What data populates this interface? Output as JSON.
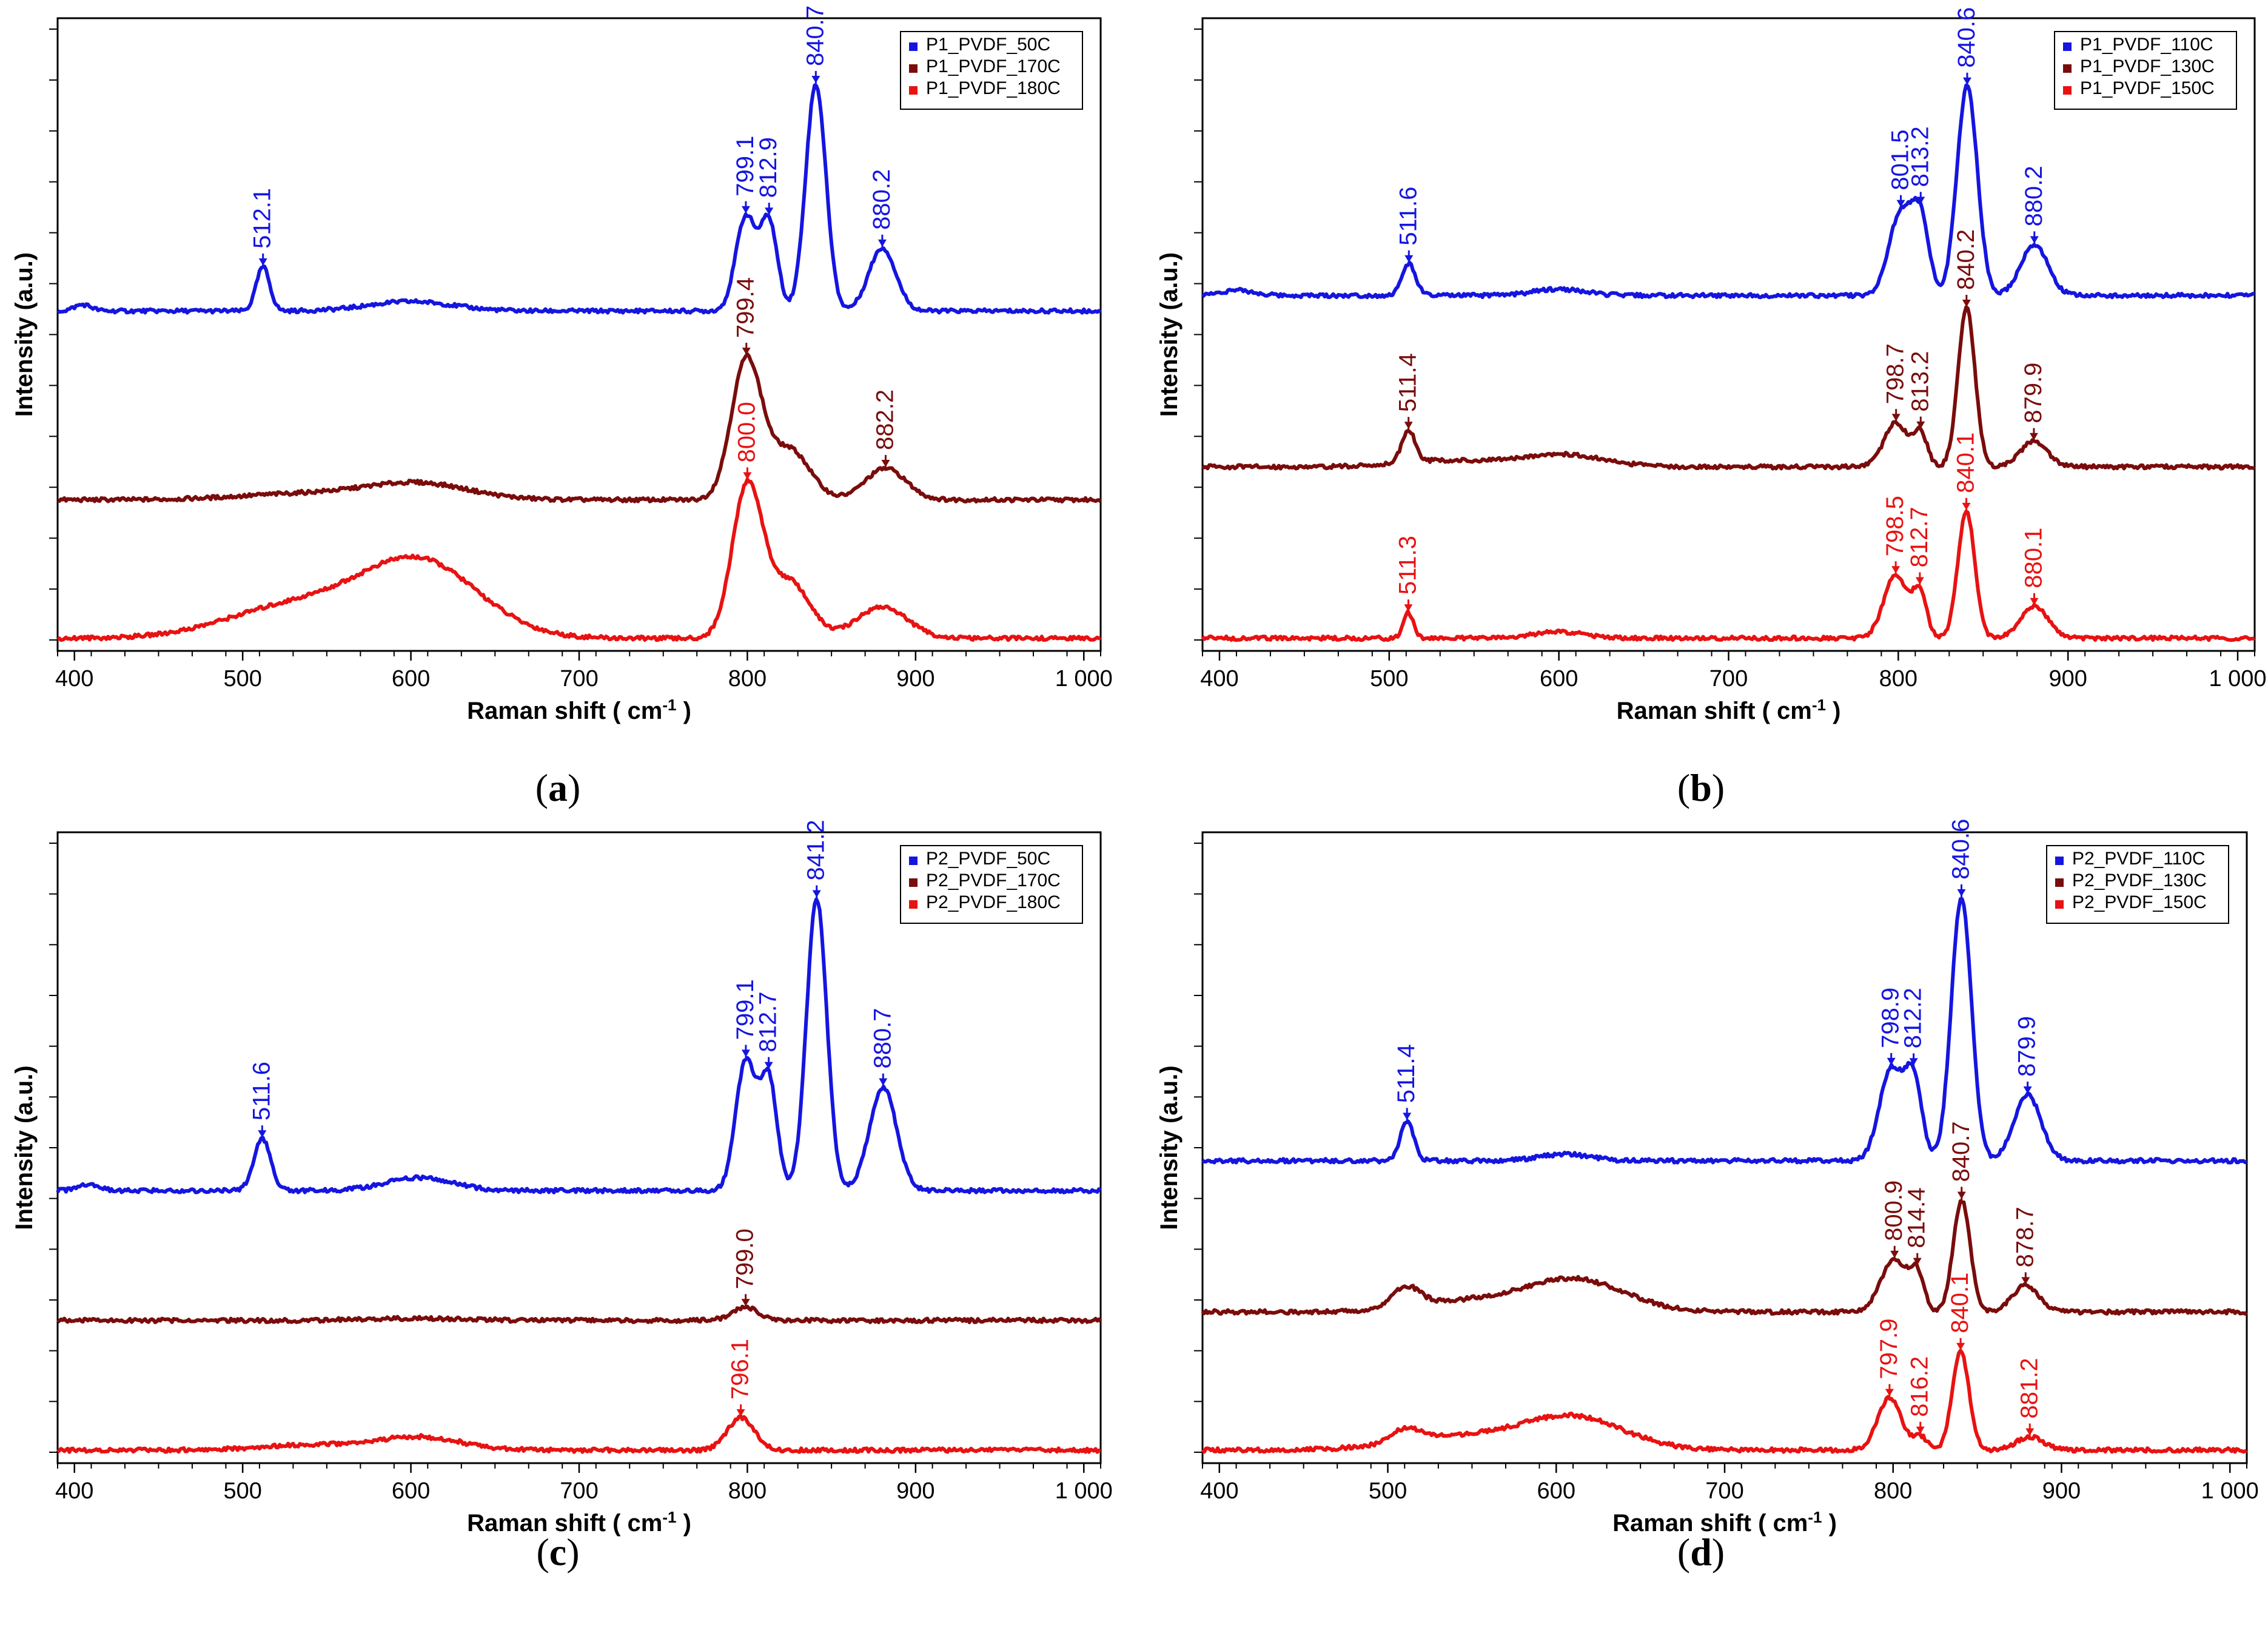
{
  "figure": {
    "x_axis_label_prefix": "Raman shift ( cm",
    "x_axis_label_exp": "-1",
    "x_axis_label_suffix": " )",
    "y_axis_label": "Intensity (a.u.)",
    "colors": {
      "series1": "#1515e0",
      "series2": "#7a0c0c",
      "series3": "#e81212"
    }
  },
  "chart_data": [
    {
      "type": "line",
      "panel": "a",
      "caption": "(a)",
      "xlim": [
        390,
        1010
      ],
      "xticks": [
        400,
        500,
        600,
        700,
        800,
        900,
        1000
      ],
      "xtick_labels": [
        "400",
        "500",
        "600",
        "700",
        "800",
        "900",
        "1 000"
      ],
      "xlabel": "Raman shift ( cm-1 )",
      "ylabel": "Intensity (a.u.)",
      "legend": [
        "P1_PVDF_50C",
        "P1_PVDF_170C",
        "P1_PVDF_180C"
      ],
      "series": [
        {
          "name": "P1_PVDF_50C",
          "color": "#1515e0",
          "baseline": 5.3,
          "peaks": [
            [
              512.1,
              0.7,
              4
            ],
            [
              799.1,
              1.5,
              6
            ],
            [
              812.9,
              1.4,
              5
            ],
            [
              840.7,
              3.6,
              6
            ],
            [
              880.2,
              1.0,
              8
            ],
            [
              600,
              0.15,
              25
            ],
            [
              405,
              0.1,
              5
            ]
          ],
          "labels": [
            {
              "x": 512.1,
              "text": "512.1"
            },
            {
              "x": 799.1,
              "text": "799.1"
            },
            {
              "x": 812.9,
              "text": "812.9"
            },
            {
              "x": 840.7,
              "text": "840.7"
            },
            {
              "x": 880.2,
              "text": "880.2"
            }
          ]
        },
        {
          "name": "P1_PVDF_170C",
          "color": "#7a0c0c",
          "baseline": 2.3,
          "peaks": [
            [
              799.4,
              2.2,
              9
            ],
            [
              825,
              0.8,
              12
            ],
            [
              882.2,
              0.5,
              12
            ],
            [
              605,
              0.25,
              30
            ],
            [
              540,
              0.1,
              40
            ]
          ],
          "labels": [
            {
              "x": 799.4,
              "text": "799.4"
            },
            {
              "x": 882.2,
              "text": "882.2"
            }
          ]
        },
        {
          "name": "P1_PVDF_180C",
          "color": "#e81212",
          "baseline": 0.1,
          "peaks": [
            [
              800.0,
              2.4,
              9
            ],
            [
              825,
              0.9,
              12
            ],
            [
              880,
              0.5,
              15
            ],
            [
              605,
              1.2,
              35
            ],
            [
              530,
              0.5,
              40
            ]
          ],
          "labels": [
            {
              "x": 800.0,
              "text": "800.0"
            }
          ]
        }
      ]
    },
    {
      "type": "line",
      "panel": "b",
      "caption": "(b)",
      "xlim": [
        390,
        1010
      ],
      "xticks": [
        400,
        500,
        600,
        700,
        800,
        900,
        1000
      ],
      "xtick_labels": [
        "400",
        "500",
        "600",
        "700",
        "800",
        "900",
        "1 000"
      ],
      "xlabel": "Raman shift ( cm-1 )",
      "ylabel": "Intensity (a.u.)",
      "legend": [
        "P1_PVDF_110C",
        "P1_PVDF_130C",
        "P1_PVDF_150C"
      ],
      "series": [
        {
          "name": "P1_PVDF_110C",
          "color": "#1515e0",
          "baseline": 5.5,
          "peaks": [
            [
              511.6,
              0.5,
              4
            ],
            [
              801.5,
              1.3,
              7
            ],
            [
              813.2,
              1.1,
              5
            ],
            [
              840.6,
              3.3,
              6
            ],
            [
              880.2,
              0.8,
              8
            ],
            [
              600,
              0.1,
              15
            ],
            [
              410,
              0.08,
              10
            ]
          ],
          "labels": [
            {
              "x": 511.6,
              "text": "511.6"
            },
            {
              "x": 801.5,
              "text": "801.5"
            },
            {
              "x": 813.2,
              "text": "813.2"
            },
            {
              "x": 840.6,
              "text": "840.6"
            },
            {
              "x": 880.2,
              "text": "880.2"
            }
          ]
        },
        {
          "name": "P1_PVDF_130C",
          "color": "#7a0c0c",
          "baseline": 2.8,
          "peaks": [
            [
              511.4,
              0.5,
              4
            ],
            [
              798.7,
              0.7,
              7
            ],
            [
              813.2,
              0.5,
              4
            ],
            [
              840.2,
              2.5,
              5
            ],
            [
              879.9,
              0.4,
              8
            ],
            [
              600,
              0.2,
              25
            ],
            [
              530,
              0.1,
              25
            ]
          ],
          "labels": [
            {
              "x": 511.4,
              "text": "511.4"
            },
            {
              "x": 798.7,
              "text": "798.7"
            },
            {
              "x": 813.2,
              "text": "813.2"
            },
            {
              "x": 840.2,
              "text": "840.2"
            },
            {
              "x": 879.9,
              "text": "879.9"
            }
          ]
        },
        {
          "name": "P1_PVDF_150C",
          "color": "#e81212",
          "baseline": 0.1,
          "peaks": [
            [
              511.3,
              0.4,
              3
            ],
            [
              798.5,
              1.0,
              7
            ],
            [
              812.7,
              0.7,
              4
            ],
            [
              840.1,
              2.0,
              5
            ],
            [
              880.1,
              0.5,
              8
            ],
            [
              600,
              0.1,
              15
            ]
          ],
          "labels": [
            {
              "x": 511.3,
              "text": "511.3"
            },
            {
              "x": 798.5,
              "text": "798.5"
            },
            {
              "x": 812.7,
              "text": "812.7"
            },
            {
              "x": 840.1,
              "text": "840.1"
            },
            {
              "x": 880.1,
              "text": "880.1"
            }
          ]
        }
      ]
    },
    {
      "type": "line",
      "panel": "c",
      "caption": "(c)",
      "xlim": [
        390,
        1010
      ],
      "xticks": [
        400,
        500,
        600,
        700,
        800,
        900,
        1000
      ],
      "xtick_labels": [
        "400",
        "500",
        "600",
        "700",
        "800",
        "900",
        "1 000"
      ],
      "xlabel": "Raman shift ( cm-1 )",
      "ylabel": "Intensity (a.u.)",
      "legend": [
        "P2_PVDF_50C",
        "P2_PVDF_170C",
        "P2_PVDF_180C"
      ],
      "series": [
        {
          "name": "P2_PVDF_50C",
          "color": "#1515e0",
          "baseline": 4.1,
          "peaks": [
            [
              511.6,
              0.8,
              5
            ],
            [
              799.1,
              2.0,
              6
            ],
            [
              812.7,
              1.7,
              5
            ],
            [
              841.2,
              4.5,
              6
            ],
            [
              880.7,
              1.6,
              8
            ],
            [
              605,
              0.2,
              20
            ],
            [
              408,
              0.1,
              6
            ]
          ],
          "labels": [
            {
              "x": 511.6,
              "text": "511.6"
            },
            {
              "x": 799.1,
              "text": "799.1"
            },
            {
              "x": 812.7,
              "text": "812.7"
            },
            {
              "x": 841.2,
              "text": "841.2"
            },
            {
              "x": 880.7,
              "text": "880.7"
            }
          ]
        },
        {
          "name": "P2_PVDF_170C",
          "color": "#7a0c0c",
          "baseline": 2.1,
          "peaks": [
            [
              799.0,
              0.2,
              8
            ],
            [
              600,
              0.03,
              30
            ]
          ],
          "labels": [
            {
              "x": 799.0,
              "text": "799.0"
            }
          ]
        },
        {
          "name": "P2_PVDF_180C",
          "color": "#e81212",
          "baseline": 0.1,
          "peaks": [
            [
              796.1,
              0.5,
              8
            ],
            [
              605,
              0.2,
              25
            ],
            [
              540,
              0.08,
              30
            ]
          ],
          "labels": [
            {
              "x": 796.1,
              "text": "796.1"
            }
          ]
        }
      ]
    },
    {
      "type": "line",
      "panel": "d",
      "caption": "(d)",
      "xlim": [
        390,
        1010
      ],
      "xticks": [
        400,
        500,
        600,
        700,
        800,
        900,
        1000
      ],
      "xtick_labels": [
        "400",
        "500",
        "600",
        "700",
        "800",
        "900",
        "1 000"
      ],
      "xlabel": "Raman shift ( cm-1 )",
      "ylabel": "Intensity (a.u.)",
      "legend": [
        "P2_PVDF_110C",
        "P2_PVDF_130C",
        "P2_PVDF_150C"
      ],
      "series": [
        {
          "name": "P2_PVDF_110C",
          "color": "#1515e0",
          "baseline": 4.5,
          "peaks": [
            [
              511.4,
              0.6,
              4
            ],
            [
              798.9,
              1.4,
              7
            ],
            [
              812.2,
              1.2,
              5
            ],
            [
              840.6,
              4.0,
              6
            ],
            [
              879.9,
              1.0,
              8
            ],
            [
              605,
              0.1,
              15
            ]
          ],
          "labels": [
            {
              "x": 511.4,
              "text": "511.4"
            },
            {
              "x": 798.9,
              "text": "798.9"
            },
            {
              "x": 812.2,
              "text": "812.2"
            },
            {
              "x": 840.6,
              "text": "840.6"
            },
            {
              "x": 879.9,
              "text": "879.9"
            }
          ]
        },
        {
          "name": "P2_PVDF_130C",
          "color": "#7a0c0c",
          "baseline": 2.2,
          "peaks": [
            [
              511,
              0.3,
              8
            ],
            [
              800.9,
              0.8,
              8
            ],
            [
              814.4,
              0.5,
              4
            ],
            [
              840.7,
              1.7,
              5
            ],
            [
              878.7,
              0.4,
              8
            ],
            [
              610,
              0.5,
              30
            ],
            [
              540,
              0.15,
              30
            ]
          ],
          "labels": [
            {
              "x": 800.9,
              "text": "800.9"
            },
            {
              "x": 814.4,
              "text": "814.4"
            },
            {
              "x": 840.7,
              "text": "840.7"
            },
            {
              "x": 878.7,
              "text": "878.7"
            }
          ]
        },
        {
          "name": "P2_PVDF_150C",
          "color": "#e81212",
          "baseline": 0.1,
          "peaks": [
            [
              511,
              0.2,
              8
            ],
            [
              797.9,
              0.8,
              7
            ],
            [
              816.2,
              0.2,
              4
            ],
            [
              840.1,
              1.5,
              5
            ],
            [
              881.2,
              0.2,
              8
            ],
            [
              610,
              0.5,
              30
            ],
            [
              540,
              0.2,
              35
            ]
          ],
          "labels": [
            {
              "x": 797.9,
              "text": "797.9"
            },
            {
              "x": 816.2,
              "text": "816.2"
            },
            {
              "x": 840.1,
              "text": "840.1"
            },
            {
              "x": 881.2,
              "text": "881.2"
            }
          ]
        }
      ]
    }
  ]
}
